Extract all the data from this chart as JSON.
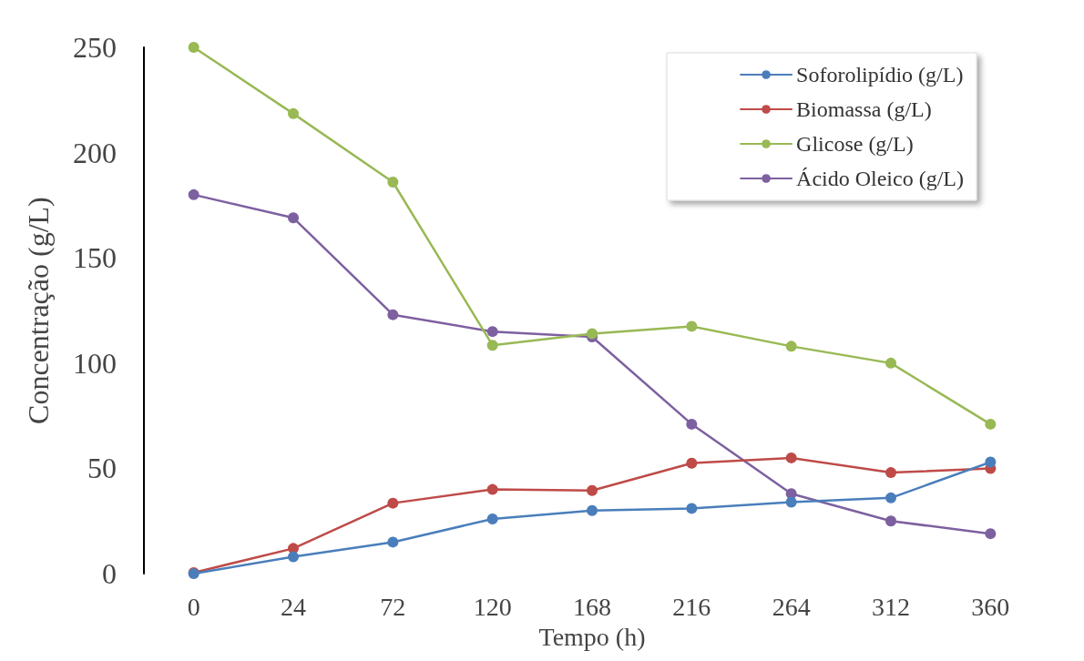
{
  "chart_data": {
    "type": "line",
    "xlabel": "Tempo (h)",
    "ylabel": "Concentração (g/L)",
    "categories": [
      "0",
      "24",
      "72",
      "120",
      "168",
      "216",
      "264",
      "312",
      "360"
    ],
    "series": [
      {
        "name": "Soforolipídio (g/L)",
        "color": "#4a7ebb",
        "values": [
          0,
          8,
          15,
          26,
          30,
          31,
          34,
          36,
          53
        ]
      },
      {
        "name": "Biomassa (g/L)",
        "color": "#be4b48",
        "values": [
          0.5,
          12,
          33.5,
          40,
          39.5,
          52.5,
          55,
          48,
          50
        ]
      },
      {
        "name": "Glicose (g/L)",
        "color": "#98b954",
        "values": [
          250,
          218.5,
          186,
          108.5,
          114,
          117.5,
          108,
          100,
          71
        ]
      },
      {
        "name": "Ácido Oleico (g/L)",
        "color": "#7d60a0",
        "values": [
          180,
          169,
          123,
          115,
          112.5,
          71,
          38,
          25,
          19
        ]
      }
    ],
    "ylim": [
      0,
      250
    ],
    "yticks": [
      0,
      50,
      100,
      150,
      200,
      250
    ],
    "grid": false,
    "legend": "top right",
    "marker": "circle",
    "line_style": "solid"
  }
}
